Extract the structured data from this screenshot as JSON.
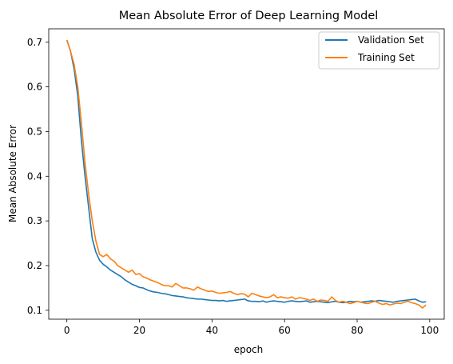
{
  "chart_data": {
    "type": "line",
    "title": "Mean Absolute Error of Deep Learning Model",
    "xlabel": "epoch",
    "ylabel": "Mean Absolute Error",
    "xlim": [
      -5,
      104
    ],
    "ylim": [
      0.08,
      0.73
    ],
    "xticks": [
      0,
      20,
      40,
      60,
      80,
      100
    ],
    "yticks": [
      0.1,
      0.2,
      0.3,
      0.4,
      0.5,
      0.6,
      0.7
    ],
    "grid": false,
    "legend_position": "upper right",
    "series": [
      {
        "name": "Validation Set",
        "color": "#1f77b4",
        "x": [
          0,
          1,
          2,
          3,
          4,
          5,
          6,
          7,
          8,
          9,
          10,
          11,
          12,
          13,
          14,
          15,
          16,
          17,
          18,
          19,
          20,
          21,
          22,
          23,
          24,
          25,
          26,
          27,
          28,
          29,
          30,
          31,
          32,
          33,
          34,
          35,
          36,
          37,
          38,
          39,
          40,
          41,
          42,
          43,
          44,
          45,
          46,
          47,
          48,
          49,
          50,
          51,
          52,
          53,
          54,
          55,
          56,
          57,
          58,
          59,
          60,
          61,
          62,
          63,
          64,
          65,
          66,
          67,
          68,
          69,
          70,
          71,
          72,
          73,
          74,
          75,
          76,
          77,
          78,
          79,
          80,
          81,
          82,
          83,
          84,
          85,
          86,
          87,
          88,
          89,
          90,
          91,
          92,
          93,
          94,
          95,
          96,
          97,
          98,
          99
        ],
        "y": [
          0.705,
          0.68,
          0.64,
          0.58,
          0.48,
          0.4,
          0.33,
          0.26,
          0.23,
          0.212,
          0.203,
          0.197,
          0.19,
          0.185,
          0.18,
          0.175,
          0.168,
          0.163,
          0.158,
          0.155,
          0.151,
          0.15,
          0.146,
          0.143,
          0.141,
          0.14,
          0.138,
          0.137,
          0.135,
          0.133,
          0.132,
          0.131,
          0.13,
          0.128,
          0.127,
          0.126,
          0.125,
          0.125,
          0.124,
          0.123,
          0.122,
          0.122,
          0.121,
          0.122,
          0.12,
          0.121,
          0.122,
          0.123,
          0.124,
          0.125,
          0.121,
          0.12,
          0.12,
          0.119,
          0.121,
          0.118,
          0.12,
          0.121,
          0.12,
          0.119,
          0.118,
          0.12,
          0.121,
          0.12,
          0.119,
          0.12,
          0.121,
          0.118,
          0.119,
          0.12,
          0.119,
          0.118,
          0.117,
          0.119,
          0.12,
          0.118,
          0.117,
          0.118,
          0.12,
          0.119,
          0.12,
          0.118,
          0.119,
          0.12,
          0.121,
          0.12,
          0.122,
          0.121,
          0.12,
          0.119,
          0.118,
          0.12,
          0.121,
          0.122,
          0.123,
          0.124,
          0.125,
          0.121,
          0.118,
          0.119
        ]
      },
      {
        "name": "Training Set",
        "color": "#ff7f0e",
        "x": [
          0,
          1,
          2,
          3,
          4,
          5,
          6,
          7,
          8,
          9,
          10,
          11,
          12,
          13,
          14,
          15,
          16,
          17,
          18,
          19,
          20,
          21,
          22,
          23,
          24,
          25,
          26,
          27,
          28,
          29,
          30,
          31,
          32,
          33,
          34,
          35,
          36,
          37,
          38,
          39,
          40,
          41,
          42,
          43,
          44,
          45,
          46,
          47,
          48,
          49,
          50,
          51,
          52,
          53,
          54,
          55,
          56,
          57,
          58,
          59,
          60,
          61,
          62,
          63,
          64,
          65,
          66,
          67,
          68,
          69,
          70,
          71,
          72,
          73,
          74,
          75,
          76,
          77,
          78,
          79,
          80,
          81,
          82,
          83,
          84,
          85,
          86,
          87,
          88,
          89,
          90,
          91,
          92,
          93,
          94,
          95,
          96,
          97,
          98,
          99
        ],
        "y": [
          0.705,
          0.68,
          0.65,
          0.6,
          0.52,
          0.43,
          0.36,
          0.3,
          0.255,
          0.225,
          0.22,
          0.225,
          0.215,
          0.21,
          0.2,
          0.195,
          0.19,
          0.185,
          0.19,
          0.18,
          0.182,
          0.175,
          0.172,
          0.168,
          0.165,
          0.162,
          0.158,
          0.155,
          0.155,
          0.152,
          0.16,
          0.155,
          0.15,
          0.15,
          0.148,
          0.145,
          0.152,
          0.148,
          0.145,
          0.142,
          0.143,
          0.14,
          0.138,
          0.139,
          0.14,
          0.142,
          0.138,
          0.135,
          0.137,
          0.136,
          0.13,
          0.138,
          0.135,
          0.132,
          0.13,
          0.128,
          0.13,
          0.135,
          0.128,
          0.13,
          0.128,
          0.127,
          0.13,
          0.125,
          0.128,
          0.127,
          0.125,
          0.122,
          0.125,
          0.12,
          0.123,
          0.122,
          0.12,
          0.13,
          0.122,
          0.118,
          0.12,
          0.118,
          0.115,
          0.117,
          0.12,
          0.118,
          0.116,
          0.115,
          0.118,
          0.12,
          0.116,
          0.113,
          0.115,
          0.112,
          0.114,
          0.116,
          0.115,
          0.118,
          0.12,
          0.117,
          0.115,
          0.112,
          0.105,
          0.112
        ]
      }
    ]
  }
}
